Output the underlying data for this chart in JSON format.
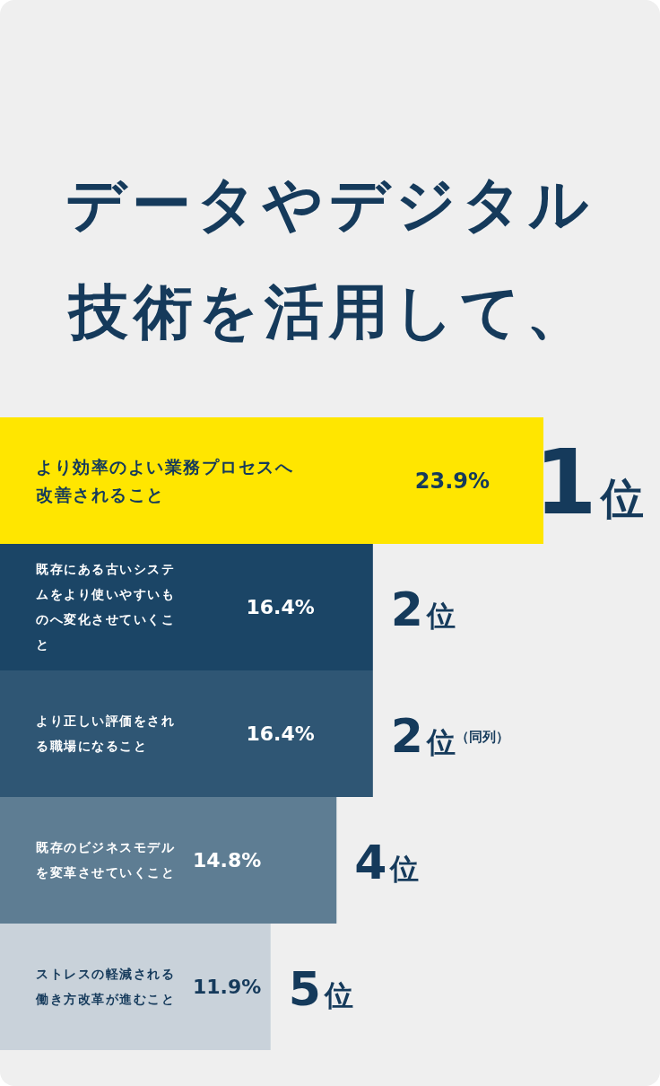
{
  "chart_data": {
    "type": "bar",
    "orientation": "horizontal",
    "title": "データやデジタル技術を活用して、",
    "categories": [
      "より効率のよい業務プロセスへ改善されること",
      "既存にある古いシステムをより使いやすいものへ変化させていくこと",
      "より正しい評価をされる職場になること",
      "既存のビジネスモデルを変革させていくこと",
      "ストレスの軽減される働き方改革が進むこと"
    ],
    "values": [
      23.9,
      16.4,
      16.4,
      14.8,
      11.9
    ],
    "value_labels": [
      "23.9%",
      "16.4%",
      "16.4%",
      "14.8%",
      "11.9%"
    ],
    "colors": [
      "#ffe600",
      "#1b4566",
      "#2f5674",
      "#5e7d93",
      "#c9d2da"
    ],
    "annotations": [
      {
        "text": "1位",
        "x": 23.9,
        "y": "より効率のよい業務プロセスへ改善されること"
      },
      {
        "text": "2位",
        "x": 16.4,
        "y": "既存にある古いシステムをより使いやすいものへ変化させていくこと"
      },
      {
        "text": "2位（同列）",
        "x": 16.4,
        "y": "より正しい評価をされる職場になること"
      },
      {
        "text": "4位",
        "x": 14.8,
        "y": "既存のビジネスモデルを変革させていくこと"
      },
      {
        "text": "5位",
        "x": 11.9,
        "y": "ストレスの軽減される働き方改革が進むこと"
      }
    ]
  }
}
